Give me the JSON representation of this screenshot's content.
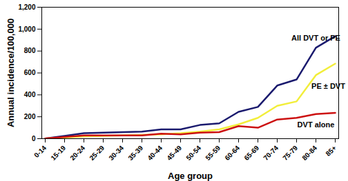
{
  "chart_data": {
    "type": "line",
    "x_label": "Age group",
    "y_label": "Annual incidence/100,000",
    "categories": [
      "0-14",
      "15-19",
      "20-24",
      "25-29",
      "30-34",
      "35-39",
      "40-44",
      "45-49",
      "50-54",
      "55-59",
      "60-64",
      "65-69",
      "70-74",
      "75-79",
      "80-84",
      "85+"
    ],
    "series": [
      {
        "name": "All DVT or PE",
        "color": "#1a1a6e",
        "values": [
          2,
          25,
          50,
          55,
          60,
          65,
          85,
          85,
          125,
          140,
          245,
          290,
          485,
          540,
          830,
          935
        ]
      },
      {
        "name": "PE ± DVT",
        "color": "#f2ee3a",
        "values": [
          1,
          10,
          20,
          25,
          30,
          35,
          40,
          50,
          65,
          85,
          130,
          190,
          300,
          340,
          580,
          685
        ]
      },
      {
        "name": "DVT alone",
        "color": "#cc1010",
        "values": [
          1,
          15,
          30,
          30,
          30,
          30,
          45,
          40,
          55,
          60,
          115,
          100,
          175,
          190,
          225,
          235
        ]
      }
    ],
    "ylim": [
      0,
      1200
    ],
    "yticks": [
      0,
      200,
      400,
      600,
      800,
      {
        "value": 1000,
        "label": "1,000"
      },
      {
        "value": 1200,
        "label": "1,200"
      }
    ],
    "grid": false
  }
}
